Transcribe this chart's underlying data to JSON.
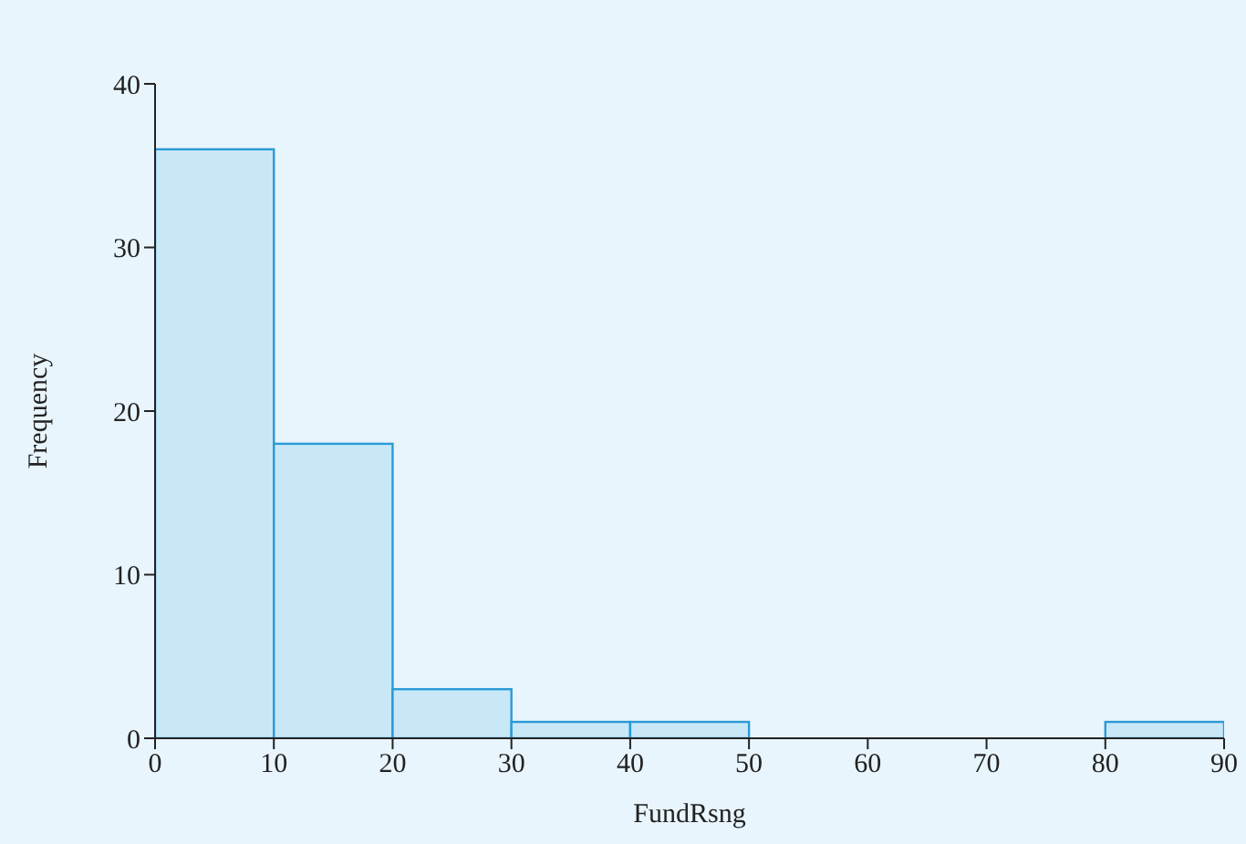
{
  "chart_data": {
    "type": "histogram",
    "xlabel": "FundRsng",
    "ylabel": "Frequency",
    "bins": [
      0,
      10,
      20,
      30,
      40,
      50,
      60,
      70,
      80,
      90
    ],
    "values": [
      36,
      18,
      3,
      1,
      1,
      0,
      0,
      0,
      1
    ],
    "color": "#c8e8f8",
    "xlim": [
      0,
      90
    ],
    "xticks": [
      0,
      10,
      20,
      30,
      40,
      50,
      60,
      70,
      80,
      90
    ],
    "ylim": [
      0,
      40
    ],
    "yticks": [
      0,
      10,
      20,
      30,
      40
    ],
    "grid": false
  }
}
